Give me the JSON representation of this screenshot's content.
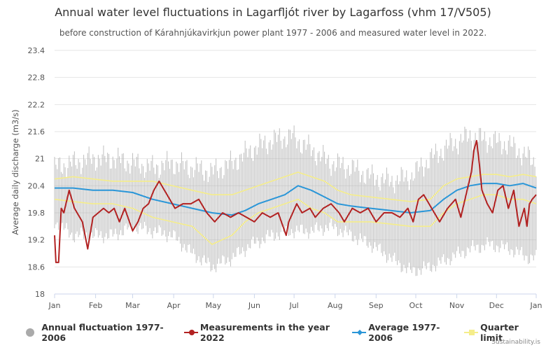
{
  "chart_data": {
    "type": "line",
    "title": "Annual water level fluctuations in Lagarfljót river by Lagarfoss (vhm 17/V505)",
    "subtitle": "before construction of Kárahnjúkavirkjun power plant 1977 - 2006 and measured water level in 2022.",
    "ylabel": "Average daily discharge (m3/s)",
    "xlabel": "",
    "ylim": [
      18,
      23.4
    ],
    "yticks": [
      "18",
      "18.6",
      "19.2",
      "19.8",
      "20.4",
      "21",
      "21.6",
      "22.2",
      "22.8",
      "23.4"
    ],
    "xticks": [
      "Jan",
      "Feb",
      "Mar",
      "Apr",
      "May",
      "Jun",
      "Jul",
      "Aug",
      "Sep",
      "Oct",
      "Nov",
      "Dec",
      "Jan"
    ],
    "grid": true,
    "legend_position": "bottom",
    "series": [
      {
        "name": "Annual fluctuation 1977-2006",
        "kind": "range",
        "color": "#aaaaaa",
        "x_days": [
          1,
          15,
          30,
          45,
          60,
          75,
          90,
          105,
          120,
          135,
          150,
          165,
          180,
          195,
          210,
          225,
          240,
          255,
          270,
          285,
          300,
          315,
          330,
          345,
          360,
          365
        ],
        "low": [
          19.6,
          19.3,
          19.3,
          19.3,
          19.5,
          19.4,
          19.3,
          18.9,
          18.6,
          18.8,
          19.1,
          19.3,
          19.4,
          19.4,
          19.5,
          19.3,
          19.1,
          18.8,
          18.5,
          18.6,
          18.8,
          19.0,
          19.1,
          19.0,
          18.8,
          18.8
        ],
        "high": [
          20.8,
          20.9,
          21.0,
          21.0,
          20.9,
          20.8,
          20.9,
          20.8,
          20.7,
          20.9,
          21.2,
          21.4,
          21.5,
          21.2,
          20.9,
          20.8,
          20.6,
          20.5,
          20.6,
          21.0,
          21.3,
          21.5,
          21.4,
          21.3,
          21.0,
          20.9
        ]
      },
      {
        "name": "Measurements in the year 2022",
        "kind": "line",
        "color": "#b22222",
        "x_days": [
          1,
          2,
          4,
          6,
          8,
          12,
          16,
          22,
          26,
          30,
          34,
          38,
          42,
          46,
          50,
          54,
          60,
          64,
          68,
          72,
          76,
          80,
          86,
          92,
          98,
          104,
          110,
          116,
          122,
          128,
          134,
          140,
          146,
          152,
          158,
          164,
          170,
          176,
          178,
          184,
          188,
          194,
          198,
          204,
          210,
          216,
          220,
          226,
          232,
          238,
          244,
          250,
          256,
          262,
          268,
          272,
          276,
          280,
          286,
          292,
          298,
          304,
          308,
          312,
          316,
          318,
          320,
          322,
          324,
          328,
          332,
          336,
          340,
          344,
          348,
          352,
          356,
          358,
          360,
          362,
          365
        ],
        "values": [
          19.3,
          18.7,
          18.7,
          19.9,
          19.8,
          20.3,
          19.9,
          19.6,
          19.0,
          19.7,
          19.8,
          19.9,
          19.8,
          19.9,
          19.6,
          19.9,
          19.4,
          19.6,
          19.9,
          20.0,
          20.3,
          20.5,
          20.2,
          19.9,
          20.0,
          20.0,
          20.1,
          19.8,
          19.6,
          19.8,
          19.7,
          19.8,
          19.7,
          19.6,
          19.8,
          19.7,
          19.8,
          19.3,
          19.6,
          20.0,
          19.8,
          19.9,
          19.7,
          19.9,
          20.0,
          19.8,
          19.6,
          19.9,
          19.8,
          19.9,
          19.6,
          19.8,
          19.8,
          19.7,
          19.9,
          19.6,
          20.1,
          20.2,
          19.9,
          19.6,
          19.9,
          20.1,
          19.7,
          20.2,
          20.7,
          21.2,
          21.4,
          20.9,
          20.3,
          20.0,
          19.8,
          20.3,
          20.4,
          19.9,
          20.3,
          19.5,
          19.9,
          19.5,
          20.0,
          20.1,
          20.2
        ]
      },
      {
        "name": "Average 1977-2006",
        "kind": "line",
        "color": "#2a96d8",
        "x_days": [
          1,
          15,
          30,
          45,
          60,
          75,
          90,
          105,
          120,
          135,
          145,
          155,
          165,
          175,
          185,
          195,
          205,
          215,
          225,
          240,
          255,
          270,
          285,
          295,
          305,
          315,
          325,
          335,
          345,
          355,
          365
        ],
        "values": [
          20.35,
          20.35,
          20.3,
          20.3,
          20.25,
          20.1,
          20.0,
          19.9,
          19.8,
          19.75,
          19.85,
          20.0,
          20.1,
          20.2,
          20.4,
          20.3,
          20.15,
          20.0,
          19.95,
          19.9,
          19.85,
          19.8,
          19.85,
          20.1,
          20.3,
          20.4,
          20.45,
          20.45,
          20.4,
          20.45,
          20.35
        ]
      },
      {
        "name": "Quarter limit",
        "kind": "line",
        "color": "#f5ed8a",
        "x_days": [
          1,
          15,
          30,
          45,
          60,
          75,
          90,
          105,
          120,
          135,
          145,
          155,
          165,
          175,
          185,
          195,
          205,
          215,
          225,
          240,
          255,
          270,
          285,
          295,
          305,
          315,
          325,
          335,
          345,
          355,
          365
        ],
        "values": [
          20.1,
          20.05,
          20.0,
          20.0,
          19.9,
          19.7,
          19.6,
          19.5,
          19.1,
          19.3,
          19.6,
          19.8,
          19.9,
          20.0,
          20.1,
          19.9,
          19.8,
          19.6,
          19.6,
          19.6,
          19.55,
          19.5,
          19.5,
          19.8,
          20.0,
          20.1,
          20.2,
          20.2,
          20.1,
          20.1,
          20.0
        ]
      },
      {
        "name": "Quarter limit",
        "kind": "line",
        "color": "#f5ed8a",
        "x_days": [
          1,
          15,
          30,
          45,
          60,
          75,
          90,
          105,
          120,
          135,
          145,
          155,
          165,
          175,
          185,
          195,
          205,
          215,
          225,
          240,
          255,
          270,
          285,
          295,
          305,
          315,
          325,
          335,
          345,
          355,
          365
        ],
        "values": [
          20.55,
          20.6,
          20.55,
          20.5,
          20.5,
          20.5,
          20.4,
          20.3,
          20.2,
          20.2,
          20.3,
          20.4,
          20.5,
          20.6,
          20.7,
          20.6,
          20.5,
          20.3,
          20.2,
          20.15,
          20.1,
          20.05,
          20.1,
          20.4,
          20.55,
          20.6,
          20.65,
          20.65,
          20.6,
          20.65,
          20.6
        ]
      }
    ]
  },
  "legend": [
    {
      "label": "Annual fluctuation 1977-2006",
      "icon": "circle",
      "color": "#aaaaaa"
    },
    {
      "label": "Measurements in the year 2022",
      "icon": "line-dot",
      "color": "#b22222"
    },
    {
      "label": "Average 1977-2006",
      "icon": "line-diamond",
      "color": "#2a96d8"
    },
    {
      "label": "Quarter limit",
      "icon": "line-square",
      "color": "#f5ed8a"
    }
  ],
  "credit": "Sustainability.is"
}
